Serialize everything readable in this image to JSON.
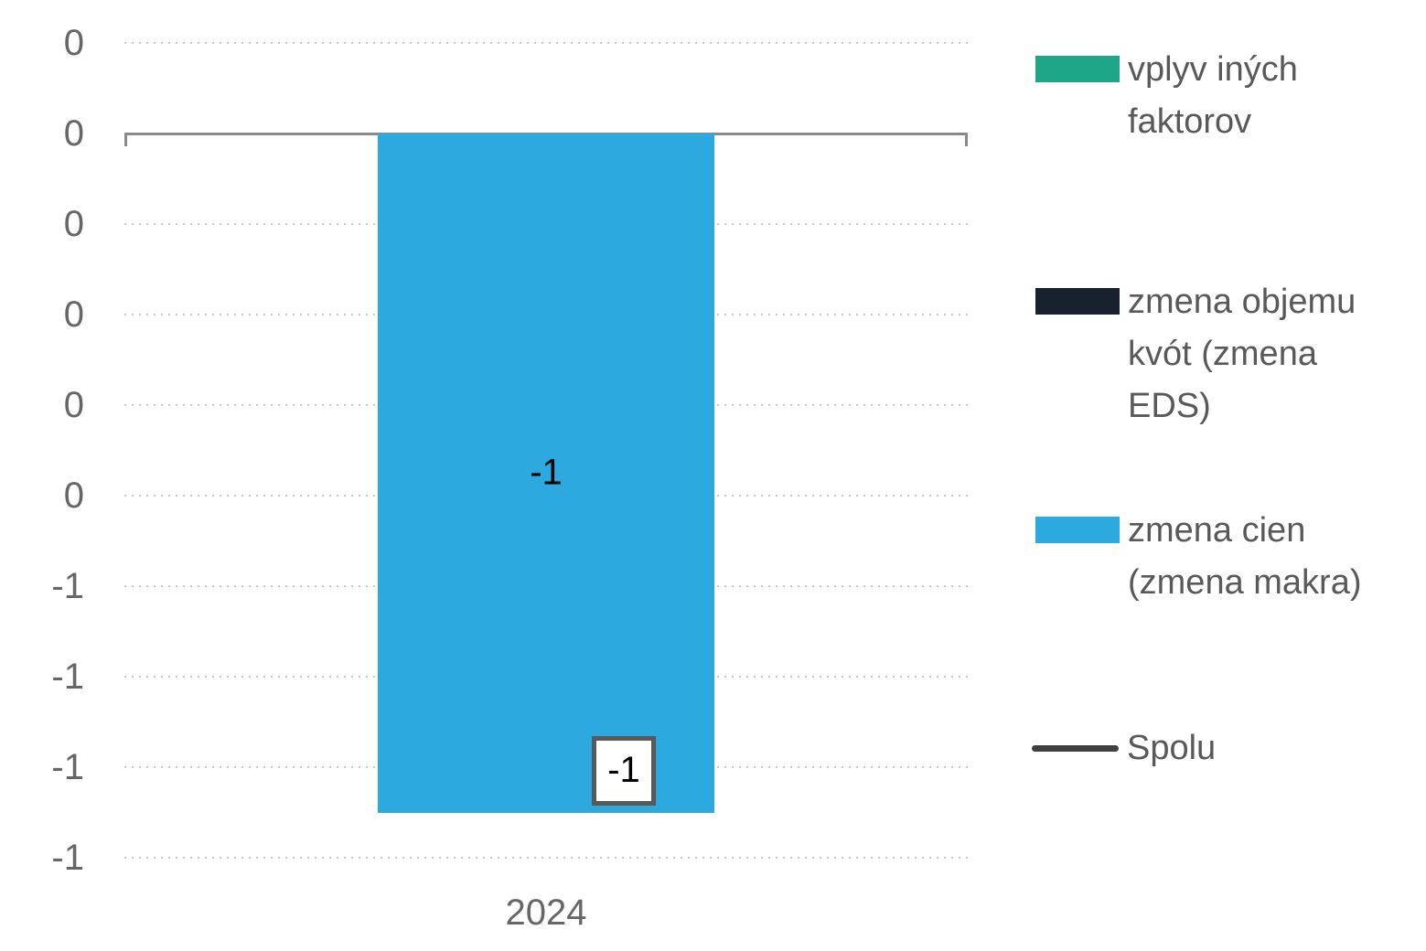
{
  "chart_data": {
    "type": "bar",
    "stacked": true,
    "title": "",
    "xlabel": "",
    "ylabel": "",
    "categories": [
      "2024"
    ],
    "series": [
      {
        "name": "vplyv iných faktorov",
        "type": "bar",
        "swatch": "rect",
        "color": "#1FA588",
        "values": [
          0
        ],
        "data_labels": []
      },
      {
        "name": "zmena objemu kvót (zmena EDS)",
        "type": "bar",
        "swatch": "rect",
        "color": "#17222E",
        "values": [
          0
        ],
        "data_labels": []
      },
      {
        "name": "zmena cien (zmena makra)",
        "type": "bar",
        "swatch": "rect",
        "color": "#2CA9DF",
        "values": [
          -0.75
        ],
        "data_labels": [
          "-1"
        ]
      },
      {
        "name": "Spolu",
        "type": "line",
        "swatch": "line",
        "color": "#404040",
        "values": [
          -0.75
        ],
        "data_labels": [
          "-1"
        ],
        "label_boxed": true
      }
    ],
    "y_axis": {
      "tick_values": [
        0.1,
        0,
        -0.1,
        -0.2,
        -0.3,
        -0.4,
        -0.5,
        -0.6,
        -0.7,
        -0.8
      ],
      "tick_labels": [
        "0",
        "0",
        "0",
        "0",
        "0",
        "0",
        "-1",
        "-1",
        "-1",
        "-1"
      ],
      "range": [
        -0.8,
        0.1
      ],
      "gridlines": "dotted"
    },
    "legend_position": "right",
    "colors": {
      "gridline": "#C9C9C9",
      "axis_line": "#8A8A8A",
      "tick_text": "#666666",
      "legend_text": "#595959",
      "bar_label_text": "#000000",
      "label_box_border": "#595959",
      "label_box_fill": "#FFFFFF"
    }
  }
}
